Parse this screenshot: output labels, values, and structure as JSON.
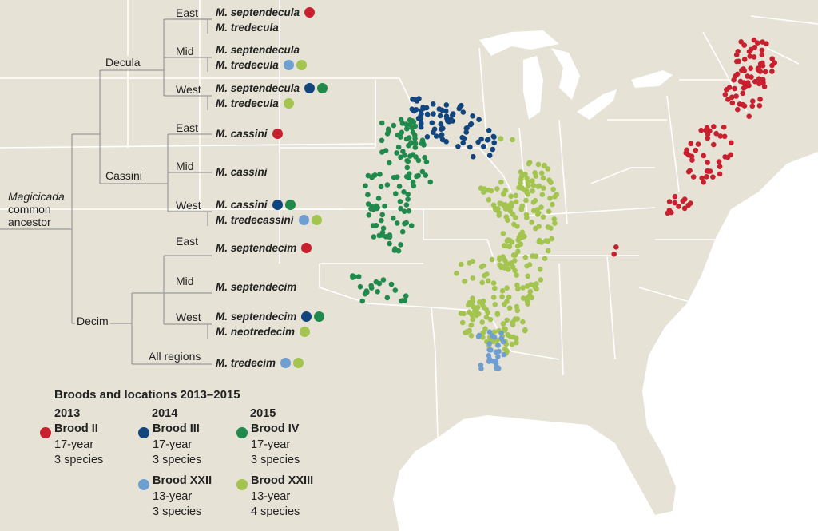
{
  "colors": {
    "brood_ii": "#c8202f",
    "brood_iii": "#12457e",
    "brood_iv": "#1f8a4c",
    "brood_xxii": "#6f9fd0",
    "brood_xxiii": "#a3c44f",
    "land": "#e6e2d6",
    "water": "#ffffff",
    "border": "#ffffff"
  },
  "tree": {
    "root_label_1": "Magicicada",
    "root_label_2": "common",
    "root_label_3": "ancestor",
    "groups": [
      {
        "name": "Decula",
        "regions": [
          {
            "name": "East",
            "species": [
              {
                "name": "M. septendecula",
                "broods": [
                  "brood_ii"
                ]
              },
              {
                "name": "M. tredecula",
                "broods": []
              }
            ]
          },
          {
            "name": "Mid",
            "species": [
              {
                "name": "M. septendecula",
                "broods": []
              },
              {
                "name": "M. tredecula",
                "broods": [
                  "brood_xxii",
                  "brood_xxiii"
                ]
              }
            ]
          },
          {
            "name": "West",
            "species": [
              {
                "name": "M. septendecula",
                "broods": [
                  "brood_iii",
                  "brood_iv"
                ]
              },
              {
                "name": "M. tredecula",
                "broods": [
                  "brood_xxiii"
                ]
              }
            ]
          }
        ]
      },
      {
        "name": "Cassini",
        "regions": [
          {
            "name": "East",
            "species": [
              {
                "name": "M. cassini",
                "broods": [
                  "brood_ii"
                ]
              }
            ]
          },
          {
            "name": "Mid",
            "species": [
              {
                "name": "M. cassini",
                "broods": []
              }
            ]
          },
          {
            "name": "West",
            "species": [
              {
                "name": "M. cassini",
                "broods": [
                  "brood_iii",
                  "brood_iv"
                ]
              },
              {
                "name": "M. tredecassini",
                "broods": [
                  "brood_xxii",
                  "brood_xxiii"
                ]
              }
            ]
          }
        ]
      },
      {
        "name": "Decim",
        "regions": [
          {
            "name": "East",
            "species": [
              {
                "name": "M. septendecim",
                "broods": [
                  "brood_ii"
                ]
              }
            ]
          },
          {
            "name": "Mid",
            "species": [
              {
                "name": "M. septendecim",
                "broods": []
              }
            ]
          },
          {
            "name": "West",
            "species": [
              {
                "name": "M. septendecim",
                "broods": [
                  "brood_iii",
                  "brood_iv"
                ]
              },
              {
                "name": "M. neotredecim",
                "broods": [
                  "brood_xxiii"
                ]
              }
            ]
          },
          {
            "name": "All regions",
            "species": [
              {
                "name": "M. tredecim",
                "broods": [
                  "brood_xxii",
                  "brood_xxiii"
                ]
              }
            ]
          }
        ]
      }
    ]
  },
  "legend": {
    "title": "Broods and locations 2013–2015",
    "years": [
      "2013",
      "2014",
      "2015"
    ],
    "items": [
      {
        "key": "brood_ii",
        "name": "Brood II",
        "cycle": "17-year",
        "species": "3 species",
        "year": "2013"
      },
      {
        "key": "brood_iii",
        "name": "Brood III",
        "cycle": "17-year",
        "species": "3 species",
        "year": "2014"
      },
      {
        "key": "brood_iv",
        "name": "Brood IV",
        "cycle": "17-year",
        "species": "3 species",
        "year": "2015"
      },
      {
        "key": "brood_xxii",
        "name": "Brood XXII",
        "cycle": "13-year",
        "species": "3 species",
        "year": "2014"
      },
      {
        "key": "brood_xxiii",
        "name": "Brood XXIII",
        "cycle": "13-year",
        "species": "4 species",
        "year": "2015"
      }
    ]
  }
}
